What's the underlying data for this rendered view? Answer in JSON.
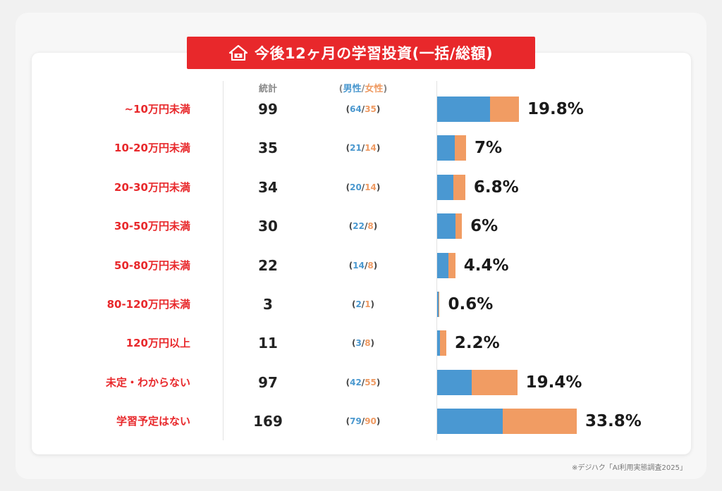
{
  "title": "今後12ヶ月の学習投資(一括/総額)",
  "headers": {
    "total": "統計",
    "gender_open": "(",
    "gender_male": "男性",
    "gender_sep": "/",
    "gender_female": "女性",
    "gender_close": ")"
  },
  "source": "※デジハク「AI利用実態調査2025」",
  "colors": {
    "male": "#4a98d2",
    "female": "#f19c63",
    "label": "#e8282b",
    "banner": "#e8282b"
  },
  "chart_data": {
    "type": "bar",
    "orientation": "horizontal",
    "stacked": true,
    "categories": [
      "~10万円未満",
      "10-20万円未満",
      "20-30万円未満",
      "30-50万円未満",
      "50-80万円未満",
      "80-120万円未満",
      "120万円以上",
      "未定・わからない",
      "学習予定はない"
    ],
    "totals": [
      99,
      35,
      34,
      30,
      22,
      3,
      11,
      97,
      169
    ],
    "percent_labels": [
      "19.8%",
      "7%",
      "6.8%",
      "6%",
      "4.4%",
      "0.6%",
      "2.2%",
      "19.4%",
      "33.8%"
    ],
    "percent_values": [
      19.8,
      7,
      6.8,
      6,
      4.4,
      0.6,
      2.2,
      19.4,
      33.8
    ],
    "series": [
      {
        "name": "男性",
        "values": [
          64,
          21,
          20,
          22,
          14,
          2,
          3,
          42,
          79
        ]
      },
      {
        "name": "女性",
        "values": [
          35,
          14,
          14,
          8,
          8,
          1,
          8,
          55,
          90
        ]
      }
    ],
    "xlim": [
      0,
      169
    ]
  }
}
